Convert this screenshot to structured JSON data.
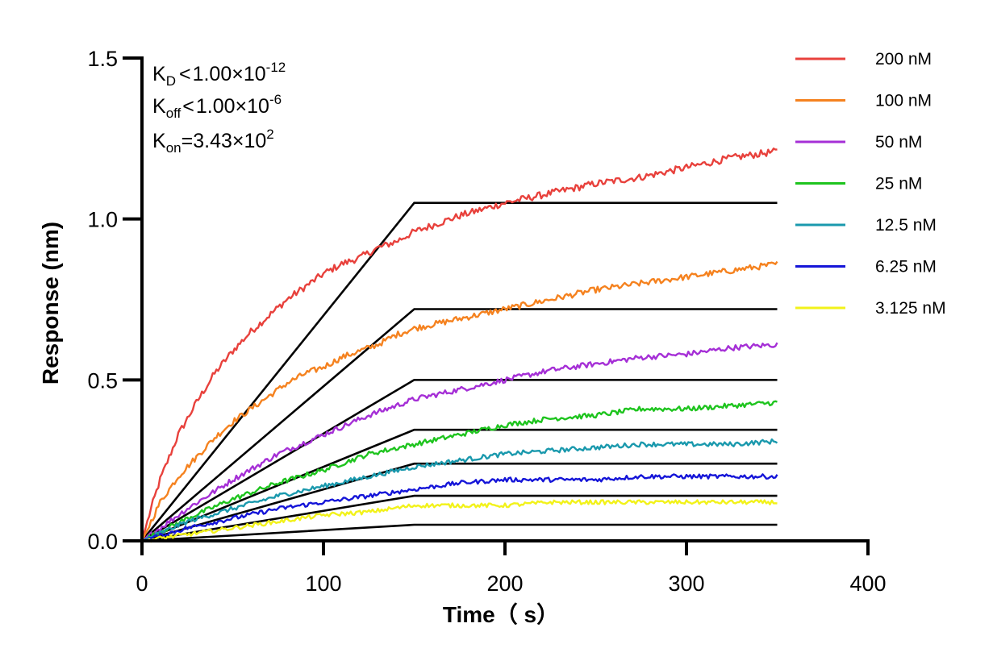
{
  "chart_data": {
    "type": "line",
    "xlabel": "Time（ s）",
    "ylabel": "Response (nm)",
    "xlim": [
      0,
      400
    ],
    "ylim": [
      0,
      1.5
    ],
    "xticks": [
      "0",
      "100",
      "200",
      "300",
      "400"
    ],
    "yticks": [
      "0.0",
      "0.5",
      "1.0",
      "1.5"
    ],
    "grid": false,
    "legend_position": "right",
    "annotations": {
      "kd": {
        "base": "K",
        "sub": "D",
        "rel": "<",
        "mantissa": "1.00×10",
        "exp": "-12"
      },
      "koff": {
        "base": "K",
        "sub": "off",
        "rel": "<",
        "mantissa": "1.00×10",
        "exp": "-6"
      },
      "kon": {
        "base": "K",
        "sub": "on",
        "rel": "=",
        "mantissa": "3.43×10",
        "exp": "2"
      }
    },
    "series": [
      {
        "name": "200 nM",
        "color": "#e8413c",
        "x": [
          0,
          5,
          10,
          20,
          30,
          40,
          50,
          60,
          70,
          80,
          90,
          100,
          110,
          120,
          130,
          140,
          150,
          160,
          175,
          200,
          225,
          250,
          275,
          300,
          325,
          350
        ],
        "y": [
          0,
          0.1,
          0.19,
          0.33,
          0.43,
          0.52,
          0.59,
          0.65,
          0.7,
          0.75,
          0.79,
          0.83,
          0.86,
          0.88,
          0.91,
          0.93,
          0.96,
          0.98,
          1.01,
          1.05,
          1.08,
          1.11,
          1.13,
          1.16,
          1.19,
          1.21
        ],
        "fit": [
          [
            0,
            0
          ],
          [
            150,
            1.05
          ],
          [
            350,
            1.05
          ]
        ]
      },
      {
        "name": "100 nM",
        "color": "#f5821f",
        "x": [
          0,
          10,
          20,
          30,
          40,
          50,
          60,
          70,
          80,
          90,
          100,
          110,
          120,
          130,
          140,
          150,
          175,
          200,
          225,
          250,
          275,
          300,
          325,
          350
        ],
        "y": [
          0,
          0.12,
          0.2,
          0.26,
          0.32,
          0.37,
          0.41,
          0.45,
          0.49,
          0.52,
          0.54,
          0.57,
          0.59,
          0.61,
          0.64,
          0.66,
          0.69,
          0.72,
          0.75,
          0.78,
          0.8,
          0.82,
          0.84,
          0.86
        ],
        "fit": [
          [
            0,
            0
          ],
          [
            150,
            0.72
          ],
          [
            350,
            0.72
          ]
        ]
      },
      {
        "name": "50 nM",
        "color": "#a52fd6",
        "x": [
          0,
          25,
          50,
          75,
          100,
          125,
          150,
          175,
          200,
          225,
          250,
          275,
          300,
          325,
          350
        ],
        "y": [
          0,
          0.1,
          0.19,
          0.27,
          0.33,
          0.39,
          0.44,
          0.47,
          0.5,
          0.53,
          0.55,
          0.57,
          0.58,
          0.6,
          0.61
        ],
        "fit": [
          [
            0,
            0
          ],
          [
            150,
            0.5
          ],
          [
            350,
            0.5
          ]
        ]
      },
      {
        "name": "25 nM",
        "color": "#1ec41e",
        "x": [
          0,
          25,
          50,
          75,
          100,
          125,
          150,
          175,
          200,
          225,
          250,
          275,
          300,
          325,
          350
        ],
        "y": [
          0,
          0.07,
          0.13,
          0.18,
          0.22,
          0.27,
          0.3,
          0.33,
          0.36,
          0.38,
          0.39,
          0.41,
          0.41,
          0.42,
          0.43
        ],
        "fit": [
          [
            0,
            0
          ],
          [
            150,
            0.345
          ],
          [
            350,
            0.345
          ]
        ]
      },
      {
        "name": "12.5 nM",
        "color": "#1a99ad",
        "x": [
          0,
          25,
          50,
          75,
          100,
          125,
          150,
          175,
          200,
          225,
          250,
          275,
          300,
          325,
          350
        ],
        "y": [
          0,
          0.06,
          0.1,
          0.14,
          0.17,
          0.2,
          0.23,
          0.25,
          0.27,
          0.28,
          0.29,
          0.3,
          0.3,
          0.3,
          0.31
        ],
        "fit": [
          [
            0,
            0
          ],
          [
            150,
            0.24
          ],
          [
            350,
            0.24
          ]
        ]
      },
      {
        "name": "6.25 nM",
        "color": "#1515d8",
        "x": [
          0,
          25,
          50,
          75,
          100,
          125,
          150,
          175,
          200,
          225,
          250,
          275,
          300,
          325,
          350
        ],
        "y": [
          0,
          0.04,
          0.07,
          0.1,
          0.12,
          0.14,
          0.16,
          0.18,
          0.19,
          0.19,
          0.19,
          0.2,
          0.2,
          0.2,
          0.2
        ],
        "fit": [
          [
            0,
            0
          ],
          [
            150,
            0.14
          ],
          [
            350,
            0.14
          ]
        ]
      },
      {
        "name": "3.125 nM",
        "color": "#f2f21a",
        "x": [
          0,
          25,
          50,
          75,
          100,
          125,
          150,
          175,
          200,
          225,
          250,
          275,
          300,
          325,
          350
        ],
        "y": [
          0,
          0.02,
          0.04,
          0.06,
          0.08,
          0.09,
          0.11,
          0.11,
          0.11,
          0.12,
          0.12,
          0.12,
          0.12,
          0.12,
          0.12
        ],
        "fit": [
          [
            0,
            0
          ],
          [
            150,
            0.05
          ],
          [
            350,
            0.05
          ]
        ]
      }
    ]
  }
}
